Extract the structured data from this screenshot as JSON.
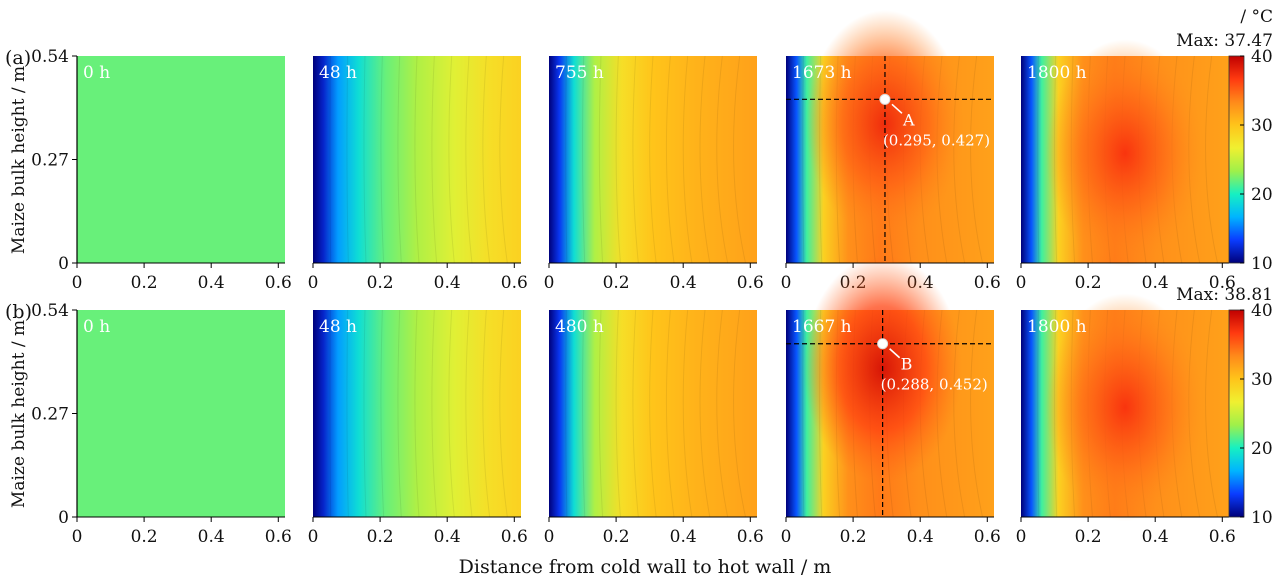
{
  "chart_data": {
    "type": "heatmap",
    "xlabel": "Distance from cold wall to hot wall / m",
    "ylabel": "Maize bulk height / m",
    "xlim": [
      0,
      0.62
    ],
    "ylim": [
      0,
      0.54
    ],
    "x_ticks": [
      "0",
      "0.2",
      "0.4",
      "0.6"
    ],
    "y_ticks": [
      "0",
      "0.27",
      "0.54"
    ],
    "colorbar": {
      "unit": "/ °C",
      "range": [
        10,
        40
      ],
      "ticks": [
        "10",
        "20",
        "30",
        "40"
      ],
      "colors": [
        "#00007a",
        "#0a3cff",
        "#00b4ff",
        "#16f0c2",
        "#9ff04a",
        "#f0f030",
        "#ffc41a",
        "#ff8a1a",
        "#ff3a10",
        "#c00000"
      ]
    },
    "rows": [
      {
        "label": "(a)",
        "max_label": "Max: 37.47",
        "max_value": 37.47,
        "panels": [
          {
            "time": "0 h",
            "uniform_temp": 22
          },
          {
            "time": "48 h",
            "hot_wall_temp": 29,
            "hotspot_temp": null
          },
          {
            "time": "755 h",
            "hot_wall_temp": 32,
            "hotspot_temp": null
          },
          {
            "time": "1673 h",
            "hot_wall_temp": 32,
            "hotspot_temp": 37.47,
            "point": {
              "name": "A",
              "coords": "(0.295, 0.427)",
              "x": 0.295,
              "y": 0.427
            }
          },
          {
            "time": "1800 h",
            "hot_wall_temp": 32,
            "hotspot_temp": 37
          }
        ]
      },
      {
        "label": "(b)",
        "max_label": "Max: 38.81",
        "max_value": 38.81,
        "panels": [
          {
            "time": "0 h",
            "uniform_temp": 22
          },
          {
            "time": "48 h",
            "hot_wall_temp": 29,
            "hotspot_temp": null
          },
          {
            "time": "480 h",
            "hot_wall_temp": 32,
            "hotspot_temp": null
          },
          {
            "time": "1667 h",
            "hot_wall_temp": 33,
            "hotspot_temp": 38.81,
            "point": {
              "name": "B",
              "coords": "(0.288, 0.452)",
              "x": 0.288,
              "y": 0.452
            }
          },
          {
            "time": "1800 h",
            "hot_wall_temp": 33,
            "hotspot_temp": 37
          }
        ]
      }
    ]
  }
}
